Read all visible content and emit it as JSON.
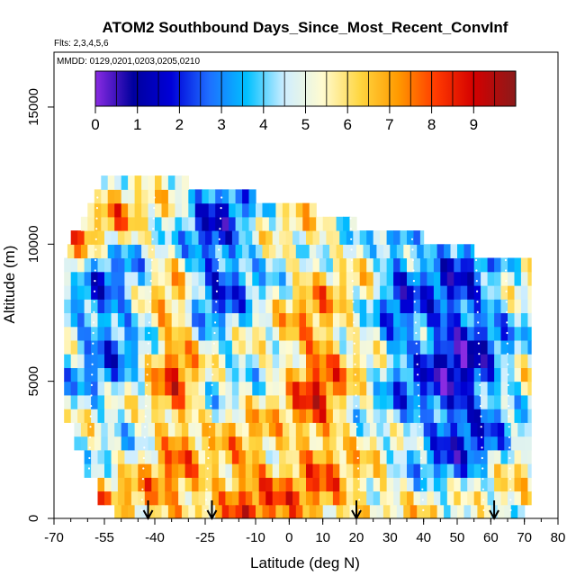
{
  "chart_data": {
    "type": "heatmap",
    "title": "ATOM2 Southbound Days_Since_Most_Recent_ConvInf",
    "subtitle_flights": "Flts: 2,3,4,5,6",
    "subtitle_dates": "MMDD: 0129,0201,0203,0205,0210",
    "xlabel": "Latitude (deg N)",
    "ylabel": "Altitude (m)",
    "xlim": [
      -70,
      80
    ],
    "ylim": [
      0,
      17000
    ],
    "x_ticks": [
      -70,
      -55,
      -40,
      -25,
      -10,
      0,
      10,
      20,
      30,
      40,
      50,
      60,
      70,
      80
    ],
    "y_ticks": [
      0,
      5000,
      10000,
      15000
    ],
    "colorbar": {
      "range": [
        0,
        10
      ],
      "tick_values": [
        0,
        1,
        2,
        3,
        4,
        5,
        6,
        7,
        8,
        9
      ],
      "colors": [
        "#8a2be2",
        "#00009e",
        "#0000d8",
        "#1e6eff",
        "#00c0ff",
        "#cfeeff",
        "#fffbd0",
        "#ffd640",
        "#ff9a00",
        "#ff3a00",
        "#d40000",
        "#8b1a1a"
      ]
    },
    "arrow_latitudes": [
      -42,
      -23,
      20,
      61
    ],
    "altitude_range": [
      0,
      12500
    ],
    "latitude_range": [
      -67,
      72
    ],
    "grid": false
  }
}
